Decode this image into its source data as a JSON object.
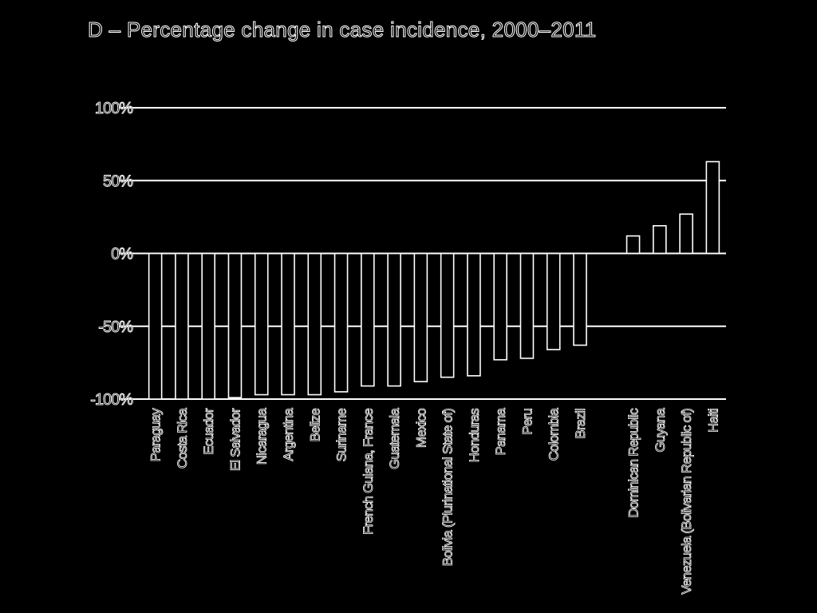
{
  "chart_data": {
    "type": "bar",
    "title": "D –  Percentage change in case incidence, 2000–2011",
    "ylim": [
      -100,
      100
    ],
    "yticks": [
      100,
      50,
      0,
      -50,
      -100
    ],
    "ytick_labels": [
      "100%",
      "50%",
      "0%",
      "-50%",
      "-100%"
    ],
    "grid": true,
    "categories": [
      "Paraguay",
      "Costa Rica",
      "Ecuador",
      "El Salvador",
      "Nicaragua",
      "Argentina",
      "Belize",
      "Suriname",
      "French Guiana, France",
      "Guatemala",
      "Mexico",
      "Bolivia (Plurinational State of)",
      "Honduras",
      "Panama",
      "Peru",
      "Colombia",
      "Brazil",
      "",
      "Dominican Republic",
      "Guyana",
      "Venezuela (Bolivarian Republic of)",
      "Haiti"
    ],
    "values": [
      -100,
      -100,
      -100,
      -99,
      -97,
      -97,
      -97,
      -95,
      -91,
      -91,
      -88,
      -85,
      -84,
      -73,
      -72,
      -66,
      -63,
      0,
      12,
      19,
      27,
      63
    ],
    "colors": {
      "background": "#000000",
      "outline": "#ffffff"
    }
  }
}
